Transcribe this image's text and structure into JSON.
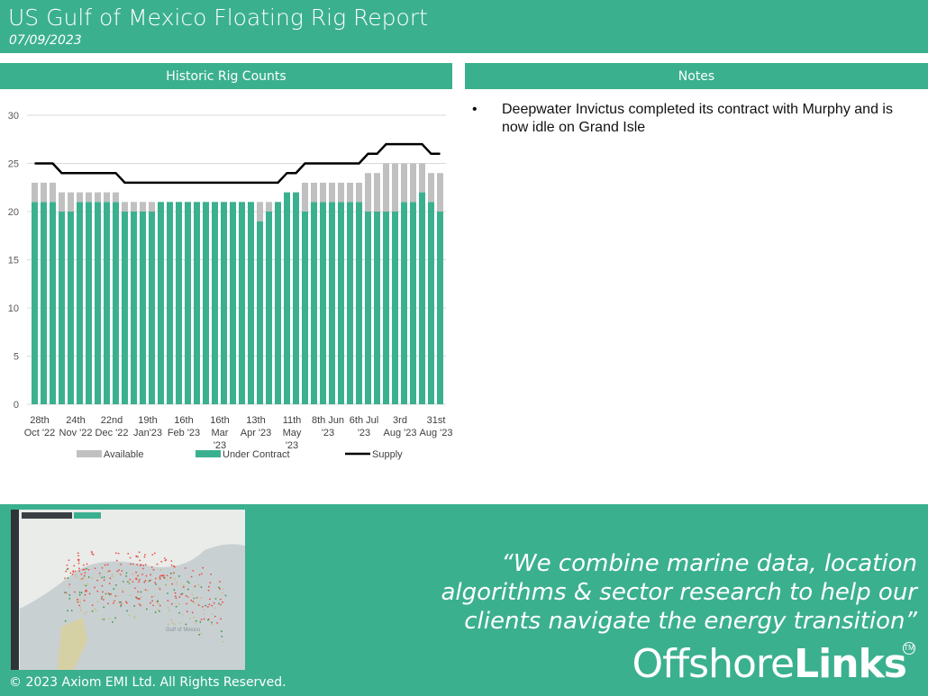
{
  "header": {
    "title": "US Gulf of Mexico Floating Rig Report",
    "date": "07/09/2023"
  },
  "panels": {
    "chart_title": "Historic Rig Counts",
    "notes_title": "Notes"
  },
  "notes": [
    "Deepwater Invictus completed its contract with Murphy and is now idle on Grand Isle"
  ],
  "colors": {
    "brand": "#3bb08f",
    "available": "#c0c0c0",
    "under_contract": "#3bb08f",
    "supply": "#000000"
  },
  "chart_data": {
    "type": "bar",
    "stacked": true,
    "ylim": [
      0,
      30
    ],
    "yticks": [
      0,
      5,
      10,
      15,
      20,
      25,
      30
    ],
    "grid": true,
    "legend_position": "bottom",
    "xtick_labels": [
      [
        "28th",
        "Oct '22"
      ],
      [
        "24th",
        "Nov '22"
      ],
      [
        "22nd",
        "Dec '22"
      ],
      [
        "19th",
        "Jan'23"
      ],
      [
        "16th",
        "Feb '23"
      ],
      [
        "16th",
        "Mar",
        "'23"
      ],
      [
        "13th",
        "Apr '23"
      ],
      [
        "11th",
        "May",
        "'23"
      ],
      [
        "8th Jun",
        "'23"
      ],
      [
        "6th Jul",
        "'23"
      ],
      [
        "3rd",
        "Aug '23"
      ],
      [
        "31st",
        "Aug '23"
      ]
    ],
    "xtick_every": 4,
    "series": [
      {
        "name": "Under Contract",
        "type": "bar",
        "values": [
          21,
          21,
          21,
          20,
          20,
          21,
          21,
          21,
          21,
          21,
          20,
          20,
          20,
          20,
          21,
          21,
          21,
          21,
          21,
          21,
          21,
          21,
          21,
          21,
          21,
          19,
          20,
          21,
          22,
          22,
          20,
          21,
          21,
          21,
          21,
          21,
          21,
          20,
          20,
          20,
          20,
          21,
          21,
          22,
          21,
          20
        ]
      },
      {
        "name": "Available",
        "type": "bar",
        "values": [
          2,
          2,
          2,
          2,
          2,
          1,
          1,
          1,
          1,
          1,
          1,
          1,
          1,
          1,
          0,
          0,
          0,
          0,
          0,
          0,
          0,
          0,
          0,
          0,
          0,
          2,
          1,
          0,
          0,
          0,
          3,
          2,
          2,
          2,
          2,
          2,
          2,
          4,
          4,
          5,
          5,
          4,
          4,
          3,
          3,
          4
        ]
      },
      {
        "name": "Supply",
        "type": "line",
        "values": [
          25,
          25,
          25,
          24,
          24,
          24,
          24,
          24,
          24,
          24,
          23,
          23,
          23,
          23,
          23,
          23,
          23,
          23,
          23,
          23,
          23,
          23,
          23,
          23,
          23,
          23,
          23,
          23,
          24,
          24,
          25,
          25,
          25,
          25,
          25,
          25,
          25,
          26,
          26,
          27,
          27,
          27,
          27,
          27,
          26,
          26
        ]
      }
    ]
  },
  "footer": {
    "quote": "“We  combine marine data, location algorithms & sector research to help our clients navigate the energy transition”",
    "logo_light": "Offshore",
    "logo_bold": "Links",
    "logo_tm": "TM",
    "copyright": "© 2023 Axiom EMI Ltd. All Rights Reserved.",
    "map_label": "Gulf of Mexico"
  }
}
